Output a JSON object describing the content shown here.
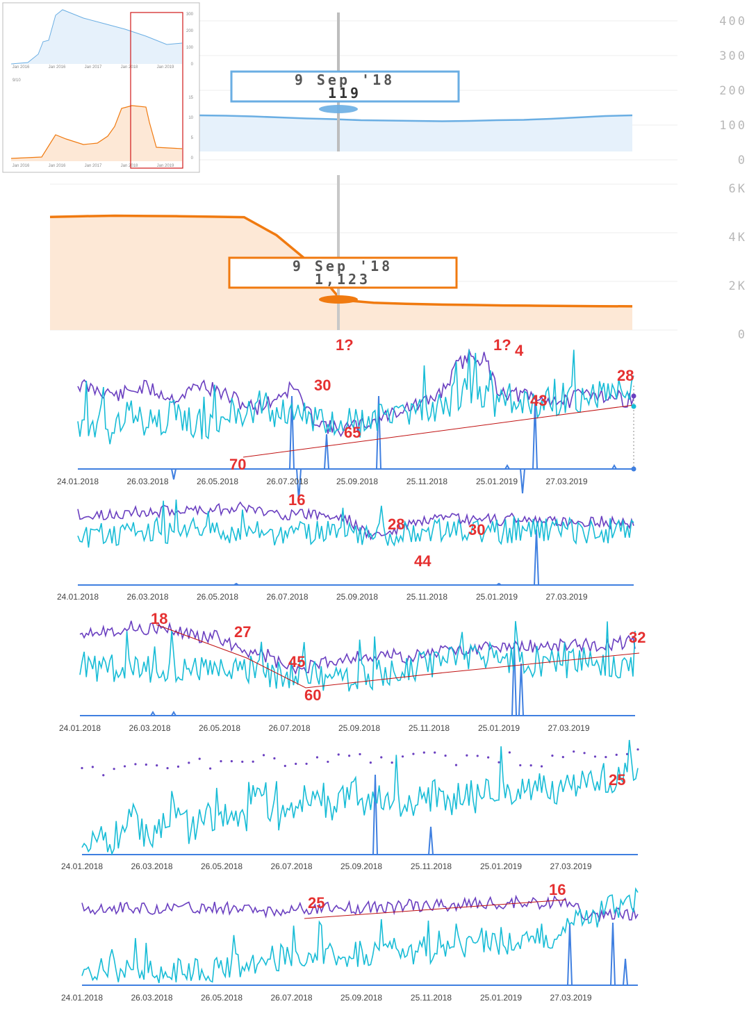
{
  "colors": {
    "views_blue": "#6aaee3",
    "views_fill": "#e6f1fb",
    "orange": "#f07a10",
    "orange_fill": "#fde8d6",
    "purple": "#6a3fc0",
    "cyan": "#17bcd6",
    "base_blue": "#3f7fe0",
    "annotation": "#e53030",
    "trend": "#c01010"
  },
  "overview_inset": {
    "x_labels": [
      "Jan 2016",
      "Jan 2016",
      "Jan 2017",
      "Jan 2018",
      "Jan 2019"
    ],
    "top_y_labels": [
      "300",
      "200",
      "100",
      "0"
    ],
    "bottom_y_labels": [
      "15",
      "10",
      "5",
      "0"
    ],
    "legend_text": "9/10"
  },
  "chart_data": [
    {
      "type": "area",
      "id": "views",
      "y_ticks": [
        "400",
        "300",
        "200",
        "100",
        "0"
      ],
      "ylim": [
        0,
        400
      ],
      "tooltip": {
        "date": "9 Sep '18",
        "value": "119"
      },
      "series": [
        {
          "values": [
            128,
            127,
            125,
            122,
            119,
            117,
            114,
            113,
            112,
            111,
            112,
            114,
            115,
            118,
            122,
            126,
            128
          ]
        }
      ]
    },
    {
      "type": "area",
      "id": "orange",
      "y_ticks": [
        "6K",
        "4K",
        "2K",
        "0"
      ],
      "ylim": [
        0,
        6000
      ],
      "tooltip": {
        "date": "9 Sep '18",
        "value": "1,123"
      },
      "series": [
        {
          "values": [
            4650,
            4680,
            4700,
            4690,
            4680,
            4660,
            4640,
            3900,
            2800,
            1230,
            1123,
            1080,
            1050,
            1030,
            1010,
            1000,
            990,
            980,
            975
          ]
        }
      ]
    },
    {
      "type": "line",
      "id": "chart1",
      "x_ticks": [
        "24.01.2018",
        "26.03.2018",
        "26.05.2018",
        "26.07.2018",
        "25.09.2018",
        "25.11.2018",
        "25.01.2019",
        "27.03.2019"
      ],
      "annotations": [
        "1?",
        "30",
        "70",
        "65",
        "1?",
        "4",
        "43",
        "28"
      ],
      "series": [
        {
          "values": [
            30,
            34,
            36,
            40,
            35,
            33,
            37,
            42,
            38,
            30,
            35,
            40,
            45,
            50,
            46,
            38,
            32,
            55,
            62,
            68,
            66,
            64,
            60,
            55,
            50,
            48,
            44,
            34,
            15,
            6,
            10,
            35,
            38,
            40,
            44,
            42,
            45,
            40,
            36,
            40,
            42,
            44
          ]
        },
        {
          "values": [
            70,
            64,
            72,
            60,
            58,
            66,
            62,
            55,
            60,
            70,
            58,
            52,
            60,
            50,
            48,
            56,
            60,
            54,
            62,
            58,
            60,
            64,
            58,
            52,
            56,
            50,
            52,
            48,
            40,
            36,
            42,
            45,
            40,
            44,
            48,
            46,
            42,
            40,
            38,
            36,
            32,
            30
          ]
        },
        {
          "values": [
            0,
            0,
            0,
            0,
            0,
            0,
            0,
            0,
            0,
            0,
            0,
            0,
            0,
            0,
            0,
            0,
            0,
            0,
            0,
            0,
            0,
            0,
            0,
            0,
            0,
            0,
            0,
            0,
            0,
            0,
            0,
            0,
            0,
            0,
            0,
            0,
            0,
            0,
            0,
            0,
            0,
            0
          ]
        }
      ]
    },
    {
      "type": "line",
      "id": "chart2",
      "x_ticks": [
        "24.01.2018",
        "26.03.2018",
        "26.05.2018",
        "26.07.2018",
        "25.09.2018",
        "25.11.2018",
        "25.01.2019",
        "27.03.2019"
      ],
      "annotations": [
        "16",
        "28",
        "44",
        "30"
      ],
      "series": [
        {
          "values": [
            22,
            26,
            24,
            22,
            20,
            22,
            20,
            18,
            19,
            17,
            18,
            16,
            15,
            18,
            20,
            22,
            24,
            22,
            24,
            26,
            28,
            42,
            46,
            44,
            36,
            32,
            30,
            29,
            28,
            30,
            28,
            30,
            27,
            28,
            30,
            32,
            30,
            31,
            30,
            32,
            33,
            31
          ]
        },
        {
          "values": [
            46,
            46,
            45,
            44,
            45,
            44,
            44,
            43,
            44,
            43,
            44,
            43,
            44,
            44,
            43,
            44,
            45,
            44,
            44,
            45,
            44,
            46,
            45,
            44,
            43,
            42,
            42,
            41,
            40,
            41,
            40,
            42,
            41,
            40,
            42,
            41,
            40,
            41,
            40,
            41,
            40,
            40
          ]
        },
        {
          "values": [
            0,
            0,
            0,
            0,
            0,
            0,
            0,
            0,
            0,
            0,
            0,
            0,
            0,
            0,
            0,
            0,
            0,
            0,
            0,
            0,
            0,
            0,
            0,
            0,
            0,
            0,
            0,
            0,
            0,
            0,
            0,
            0,
            0,
            0,
            0,
            0,
            0,
            0,
            0,
            0,
            0,
            0
          ]
        }
      ]
    },
    {
      "type": "line",
      "id": "chart3",
      "x_ticks": [
        "24.01.2018",
        "26.03.2018",
        "26.05.2018",
        "26.07.2018",
        "25.09.2018",
        "25.11.2018",
        "25.01.2019",
        "27.03.2019"
      ],
      "annotations": [
        "18",
        "27",
        "45",
        "60",
        "32"
      ],
      "series": [
        {
          "values": [
            22,
            20,
            21,
            19,
            18,
            19,
            20,
            22,
            24,
            26,
            27,
            33,
            38,
            42,
            45,
            55,
            58,
            55,
            52,
            48,
            46,
            45,
            47,
            44,
            46,
            44,
            42,
            40,
            39,
            38,
            38,
            37,
            36,
            36,
            35,
            36,
            34,
            35,
            34,
            33,
            32,
            32
          ]
        },
        {
          "values": [
            60,
            58,
            56,
            57,
            55,
            57,
            55,
            56,
            55,
            57,
            56,
            55,
            57,
            56,
            60,
            64,
            62,
            63,
            64,
            66,
            65,
            64,
            62,
            60,
            58,
            54,
            52,
            50,
            48,
            46,
            45,
            48,
            50,
            49,
            52,
            50,
            52,
            50,
            52,
            50,
            52,
            51
          ]
        },
        {
          "values": [
            0,
            0,
            0,
            0,
            0,
            0,
            0,
            0,
            0,
            0,
            0,
            0,
            0,
            0,
            0,
            0,
            0,
            0,
            0,
            0,
            0,
            0,
            0,
            0,
            0,
            0,
            0,
            0,
            0,
            0,
            0,
            0,
            0,
            0,
            0,
            0,
            0,
            0,
            0,
            0,
            0,
            0
          ]
        }
      ]
    },
    {
      "type": "line",
      "id": "chart4",
      "x_ticks": [
        "24.01.2018",
        "26.03.2018",
        "26.05.2018",
        "26.07.2018",
        "25.09.2018",
        "25.11.2018",
        "25.01.2019",
        "27.03.2019"
      ],
      "annotations": [
        "25"
      ],
      "series": [
        {
          "values": [
            40,
            38,
            36,
            35,
            33,
            34,
            32,
            30,
            31,
            32,
            30,
            29,
            28,
            30,
            31,
            30,
            29,
            30,
            28,
            29,
            31,
            30,
            29,
            28,
            30,
            29,
            28,
            27,
            29,
            28,
            27,
            28,
            29,
            30,
            34,
            30,
            28,
            27,
            26,
            27,
            25,
            26
          ]
        },
        {
          "values": [
            90,
            80,
            92,
            78,
            70,
            88,
            72,
            60,
            80,
            70,
            66,
            58,
            72,
            50,
            62,
            70,
            55,
            48,
            62,
            56,
            40,
            58,
            52,
            46,
            60,
            50,
            48,
            56,
            44,
            52,
            46,
            40,
            50,
            44,
            42,
            48,
            36,
            40,
            30,
            34,
            28,
            26
          ]
        },
        {
          "values": [
            0,
            0,
            0,
            0,
            0,
            0,
            0,
            0,
            0,
            0,
            0,
            0,
            0,
            0,
            0,
            0,
            0,
            0,
            0,
            0,
            0,
            0,
            0,
            0,
            0,
            0,
            0,
            0,
            0,
            0,
            0,
            0,
            0,
            0,
            0,
            0,
            0,
            0,
            0,
            0,
            0,
            0
          ]
        }
      ]
    },
    {
      "type": "line",
      "id": "chart5",
      "x_ticks": [
        "24.01.2018",
        "26.03.2018",
        "26.05.2018",
        "26.07.2018",
        "25.09.2018",
        "25.11.2018",
        "25.01.2019",
        "27.03.2019"
      ],
      "annotations": [
        "25",
        "16"
      ],
      "series": [
        {
          "values": [
            22,
            22,
            23,
            22,
            22,
            23,
            22,
            22,
            23,
            23,
            22,
            23,
            24,
            25,
            24,
            24,
            23,
            23,
            22,
            22,
            22,
            21,
            21,
            21,
            20,
            20,
            19,
            19,
            18,
            18,
            18,
            17,
            17,
            16,
            17,
            16,
            16,
            30,
            32,
            30,
            28,
            28
          ]
        },
        {
          "values": [
            88,
            86,
            84,
            85,
            86,
            85,
            84,
            84,
            83,
            84,
            82,
            82,
            80,
            78,
            74,
            72,
            74,
            70,
            72,
            68,
            70,
            66,
            70,
            64,
            68,
            62,
            66,
            60,
            62,
            60,
            58,
            56,
            54,
            52,
            50,
            48,
            40,
            30,
            28,
            22,
            18,
            15
          ]
        },
        {
          "values": [
            0,
            0,
            0,
            0,
            0,
            0,
            0,
            0,
            0,
            0,
            0,
            0,
            0,
            0,
            0,
            0,
            0,
            0,
            0,
            0,
            0,
            0,
            0,
            0,
            0,
            0,
            0,
            0,
            0,
            0,
            0,
            0,
            0,
            0,
            0,
            0,
            0,
            0,
            0,
            0,
            0,
            0
          ]
        }
      ]
    }
  ]
}
